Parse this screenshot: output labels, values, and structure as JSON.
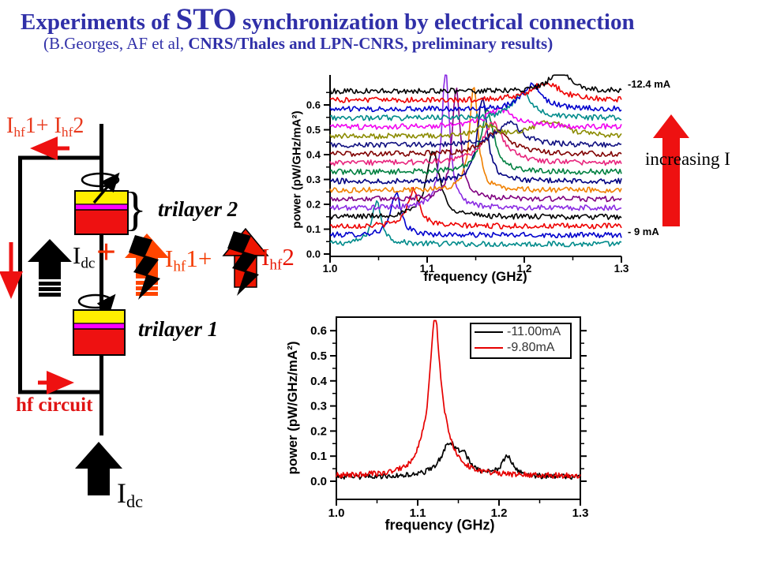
{
  "slide": {
    "title": {
      "prefix": "Experiments of ",
      "emph": "STO",
      "suffix": " synchronization by electrical connection"
    },
    "subtitle": {
      "normal": "(B.Georges, AF et al, ",
      "bold": "CNRS/Thales and LPN-CNRS, preliminary results)"
    }
  },
  "colors": {
    "title_blue": "#3030a8",
    "circuit_red": "#e8391d",
    "arrow_red": "#ee1111",
    "lightning_arrow1": "#ff4500",
    "lightning_arrow2": "#ee1500",
    "trilayer_top": "#ffee00",
    "trilayer_mid": "#ff00ff",
    "trilayer_bottom": "#ee1111",
    "hf_circuit_red": "#e01414"
  },
  "circuit": {
    "ihf_sum": {
      "i1": "I",
      "s1": "hf",
      "mid": "1+ ",
      "i2": "I",
      "s2": "hf",
      "end": "2"
    },
    "idc_mid": {
      "base": "I",
      "sub": "dc"
    },
    "plus1": "+",
    "ihf1": {
      "base": "I",
      "sub": "hf",
      "end": "1+"
    },
    "ihf2": {
      "base": "I",
      "sub": "hf",
      "end": "2"
    },
    "trilayer2_label": "trilayer 2",
    "trilayer1_label": "trilayer 1",
    "brace": "}",
    "hf_circuit_label": "hf circuit",
    "idc_big": {
      "base": "I",
      "sub": "dc"
    }
  },
  "chart_data": [
    {
      "type": "line",
      "role": "waterfall-spectra",
      "title": "",
      "xlabel": "frequency (GHz)",
      "ylabel": "power (pW/GHz/mA²)",
      "xlim": [
        1.0,
        1.3
      ],
      "ylim": [
        0.0,
        0.65
      ],
      "grid": false,
      "x_ticks": [
        1.0,
        1.1,
        1.2,
        1.3
      ],
      "y_ticks": [
        0.0,
        0.1,
        0.2,
        0.3,
        0.4,
        0.5,
        0.6
      ],
      "x_tick_labels": [
        "1.0",
        "1.1",
        "1.2",
        "1.3"
      ],
      "y_tick_labels": [
        "0.0",
        "0.1",
        "0.2",
        "0.3",
        "0.4",
        "0.5",
        "0.6"
      ],
      "annotations": {
        "top_current": "-12.4 mA",
        "bottom_current": "- 9 mA",
        "arrow_label": "increasing I",
        "arrow_color": "#ee1111"
      },
      "noise_amplitude": 0.011,
      "series": [
        {
          "color": "#008b8b",
          "offset": 0.04,
          "peaks": [
            {
              "f": 1.048,
              "a": 0.17,
              "w": 0.006
            }
          ]
        },
        {
          "color": "#0000cd",
          "offset": 0.076,
          "peaks": [
            {
              "f": 1.068,
              "a": 0.17,
              "w": 0.006
            }
          ]
        },
        {
          "color": "#ee0000",
          "offset": 0.112,
          "peaks": [
            {
              "f": 1.086,
              "a": 0.15,
              "w": 0.007
            }
          ]
        },
        {
          "color": "#000000",
          "offset": 0.149,
          "peaks": [
            {
              "f": 1.106,
              "a": 0.27,
              "w": 0.008
            }
          ]
        },
        {
          "color": "#8a2be2",
          "offset": 0.185,
          "peaks": [
            {
              "f": 1.119,
              "a": 0.55,
              "w": 0.005
            }
          ]
        },
        {
          "color": "#800080",
          "offset": 0.221,
          "peaks": [
            {
              "f": 1.13,
              "a": 0.45,
              "w": 0.005
            }
          ]
        },
        {
          "color": "#f08000",
          "offset": 0.257,
          "peaks": [
            {
              "f": 1.148,
              "a": 0.42,
              "w": 0.005
            }
          ]
        },
        {
          "color": "#000080",
          "offset": 0.293,
          "peaks": [
            {
              "f": 1.157,
              "a": 0.34,
              "w": 0.006
            }
          ]
        },
        {
          "color": "#008040",
          "offset": 0.33,
          "peaks": [
            {
              "f": 1.162,
              "a": 0.25,
              "w": 0.008
            }
          ]
        },
        {
          "color": "#e8257d",
          "offset": 0.366,
          "peaks": [
            {
              "f": 1.168,
              "a": 0.16,
              "w": 0.013
            }
          ]
        },
        {
          "color": "#800000",
          "offset": 0.402,
          "peaks": [
            {
              "f": 1.172,
              "a": 0.09,
              "w": 0.016
            }
          ]
        },
        {
          "color": "#101080",
          "offset": 0.438,
          "peaks": [
            {
              "f": 1.185,
              "a": 0.09,
              "w": 0.015
            }
          ]
        },
        {
          "color": "#8b8b00",
          "offset": 0.474,
          "peaks": [
            {
              "f": 1.225,
              "a": 0.06,
              "w": 0.02
            },
            {
              "f": 1.16,
              "a": 0.04,
              "w": 0.01
            }
          ]
        },
        {
          "color": "#f000f0",
          "offset": 0.511,
          "peaks": [
            {
              "f": 1.175,
              "a": 0.07,
              "w": 0.018
            }
          ]
        },
        {
          "color": "#008b8b",
          "offset": 0.547,
          "peaks": [
            {
              "f": 1.198,
              "a": 0.1,
              "w": 0.012
            }
          ]
        },
        {
          "color": "#0000cd",
          "offset": 0.583,
          "peaks": [
            {
              "f": 1.208,
              "a": 0.1,
              "w": 0.012
            }
          ]
        },
        {
          "color": "#ee0000",
          "offset": 0.619,
          "peaks": [
            {
              "f": 1.222,
              "a": 0.07,
              "w": 0.018
            }
          ]
        },
        {
          "color": "#000000",
          "offset": 0.655,
          "peaks": [
            {
              "f": 1.237,
              "a": 0.09,
              "w": 0.012
            }
          ]
        }
      ]
    },
    {
      "type": "line",
      "role": "comparison-spectra",
      "title": "",
      "xlabel": "frequency (GHz)",
      "ylabel": "power (pW/GHz/mA²)",
      "xlim": [
        1.0,
        1.3
      ],
      "ylim": [
        0.0,
        0.65
      ],
      "grid": false,
      "x_ticks": [
        1.0,
        1.1,
        1.2,
        1.3
      ],
      "y_ticks": [
        0.0,
        0.1,
        0.2,
        0.3,
        0.4,
        0.5,
        0.6
      ],
      "x_tick_labels": [
        "1.0",
        "1.1",
        "1.2",
        "1.3"
      ],
      "y_tick_labels": [
        "0.0",
        "0.1",
        "0.2",
        "0.3",
        "0.4",
        "0.5",
        "0.6"
      ],
      "legend_position": "top-right",
      "series": [
        {
          "name": "-11.00mA",
          "color": "#000000",
          "baseline": 0.016,
          "noise": 0.02,
          "peaks": [
            {
              "f": 1.139,
              "a": 0.125,
              "w": 0.013
            },
            {
              "f": 1.157,
              "a": 0.055,
              "w": 0.009
            },
            {
              "f": 1.21,
              "a": 0.08,
              "w": 0.008
            }
          ]
        },
        {
          "name": "-9.80mA",
          "color": "#e60000",
          "baseline": 0.02,
          "noise": 0.022,
          "peaks": [
            {
              "f": 1.121,
              "a": 0.56,
              "w": 0.0075
            },
            {
              "f": 1.131,
              "a": 0.11,
              "w": 0.016
            },
            {
              "f": 1.104,
              "a": 0.035,
              "w": 0.008
            }
          ]
        }
      ]
    }
  ]
}
